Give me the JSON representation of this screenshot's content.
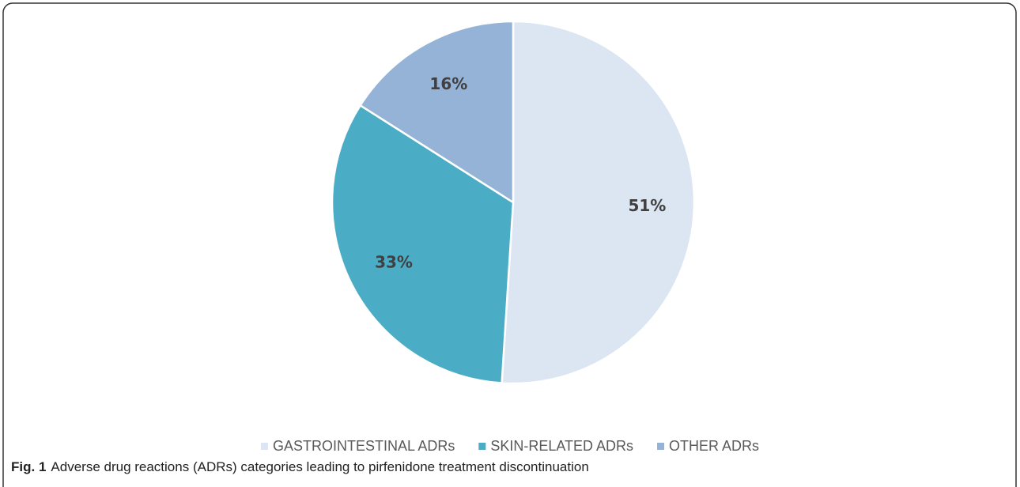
{
  "chart_data": {
    "type": "pie",
    "categories": [
      "GASTROINTESTINAL ADRs",
      "SKIN-RELATED ADRs",
      "OTHER ADRs"
    ],
    "values": [
      51,
      33,
      16
    ],
    "value_labels": [
      "51%",
      "33%",
      "16%"
    ],
    "colors": [
      "#dce6f2",
      "#4bacc6",
      "#95b3d7"
    ],
    "legend": "bottom",
    "caption_label": "Fig. 1",
    "caption": "Adverse drug reactions (ADRs) categories leading to pirfenidone treatment discontinuation"
  }
}
